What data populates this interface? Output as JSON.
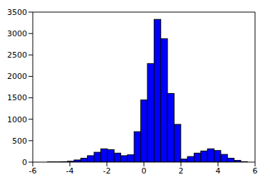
{
  "chart_data": {
    "type": "histogram",
    "bins": [
      -5.2,
      -4.84,
      -4.48,
      -4.12,
      -3.76,
      -3.4,
      -3.04,
      -2.68,
      -2.32,
      -1.96,
      -1.6,
      -1.24,
      -0.88,
      -0.52,
      -0.16,
      0.2,
      0.56,
      0.92,
      1.28,
      1.64,
      2.0,
      2.36,
      2.72,
      3.08,
      3.44,
      3.8,
      4.16,
      4.52,
      4.88,
      5.24,
      5.6
    ],
    "values": [
      5,
      5,
      10,
      20,
      50,
      90,
      150,
      230,
      310,
      290,
      210,
      150,
      170,
      710,
      1450,
      2300,
      3330,
      2880,
      1600,
      880,
      70,
      130,
      210,
      260,
      310,
      270,
      180,
      90,
      40,
      10
    ],
    "color": "#0000ff",
    "xlim": [
      -6,
      6
    ],
    "xticks": [
      -6,
      -4,
      -2,
      0,
      2,
      4,
      6
    ],
    "ylim": [
      0,
      3500
    ],
    "yticks": [
      0,
      500,
      1000,
      1500,
      2000,
      2500,
      3000,
      3500
    ]
  }
}
